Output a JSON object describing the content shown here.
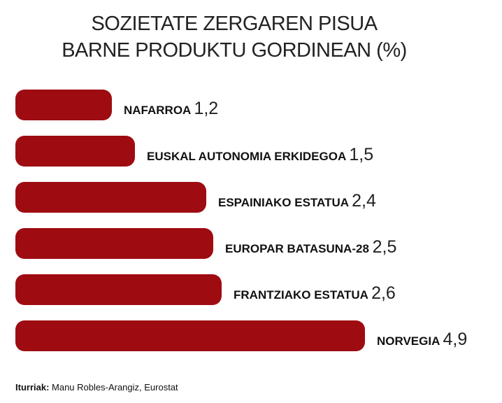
{
  "chart_data": {
    "type": "bar",
    "orientation": "horizontal",
    "title": [
      "SOZIETATE ZERGAREN PISUA",
      "BARNE PRODUKTU GORDINEAN (%)"
    ],
    "categories": [
      "NAFARROA",
      "EUSKAL AUTONOMIA ERKIDEGOA",
      "ESPAINIAKO ESTATUA",
      "EUROPAR BATASUNA-28",
      "FRANTZIAKO ESTATUA",
      "NORVEGIA"
    ],
    "values": [
      1.2,
      1.5,
      2.4,
      2.5,
      2.6,
      4.9
    ],
    "value_labels": [
      "1,2",
      "1,5",
      "2,4",
      "2,5",
      "2,6",
      "4,9"
    ],
    "bar_color": "#9e0c12",
    "xlabel": "",
    "ylabel": "",
    "grid": false
  },
  "source": {
    "label": "Iturriak:",
    "text": " Manu Robles-Arangiz, Eurostat"
  }
}
